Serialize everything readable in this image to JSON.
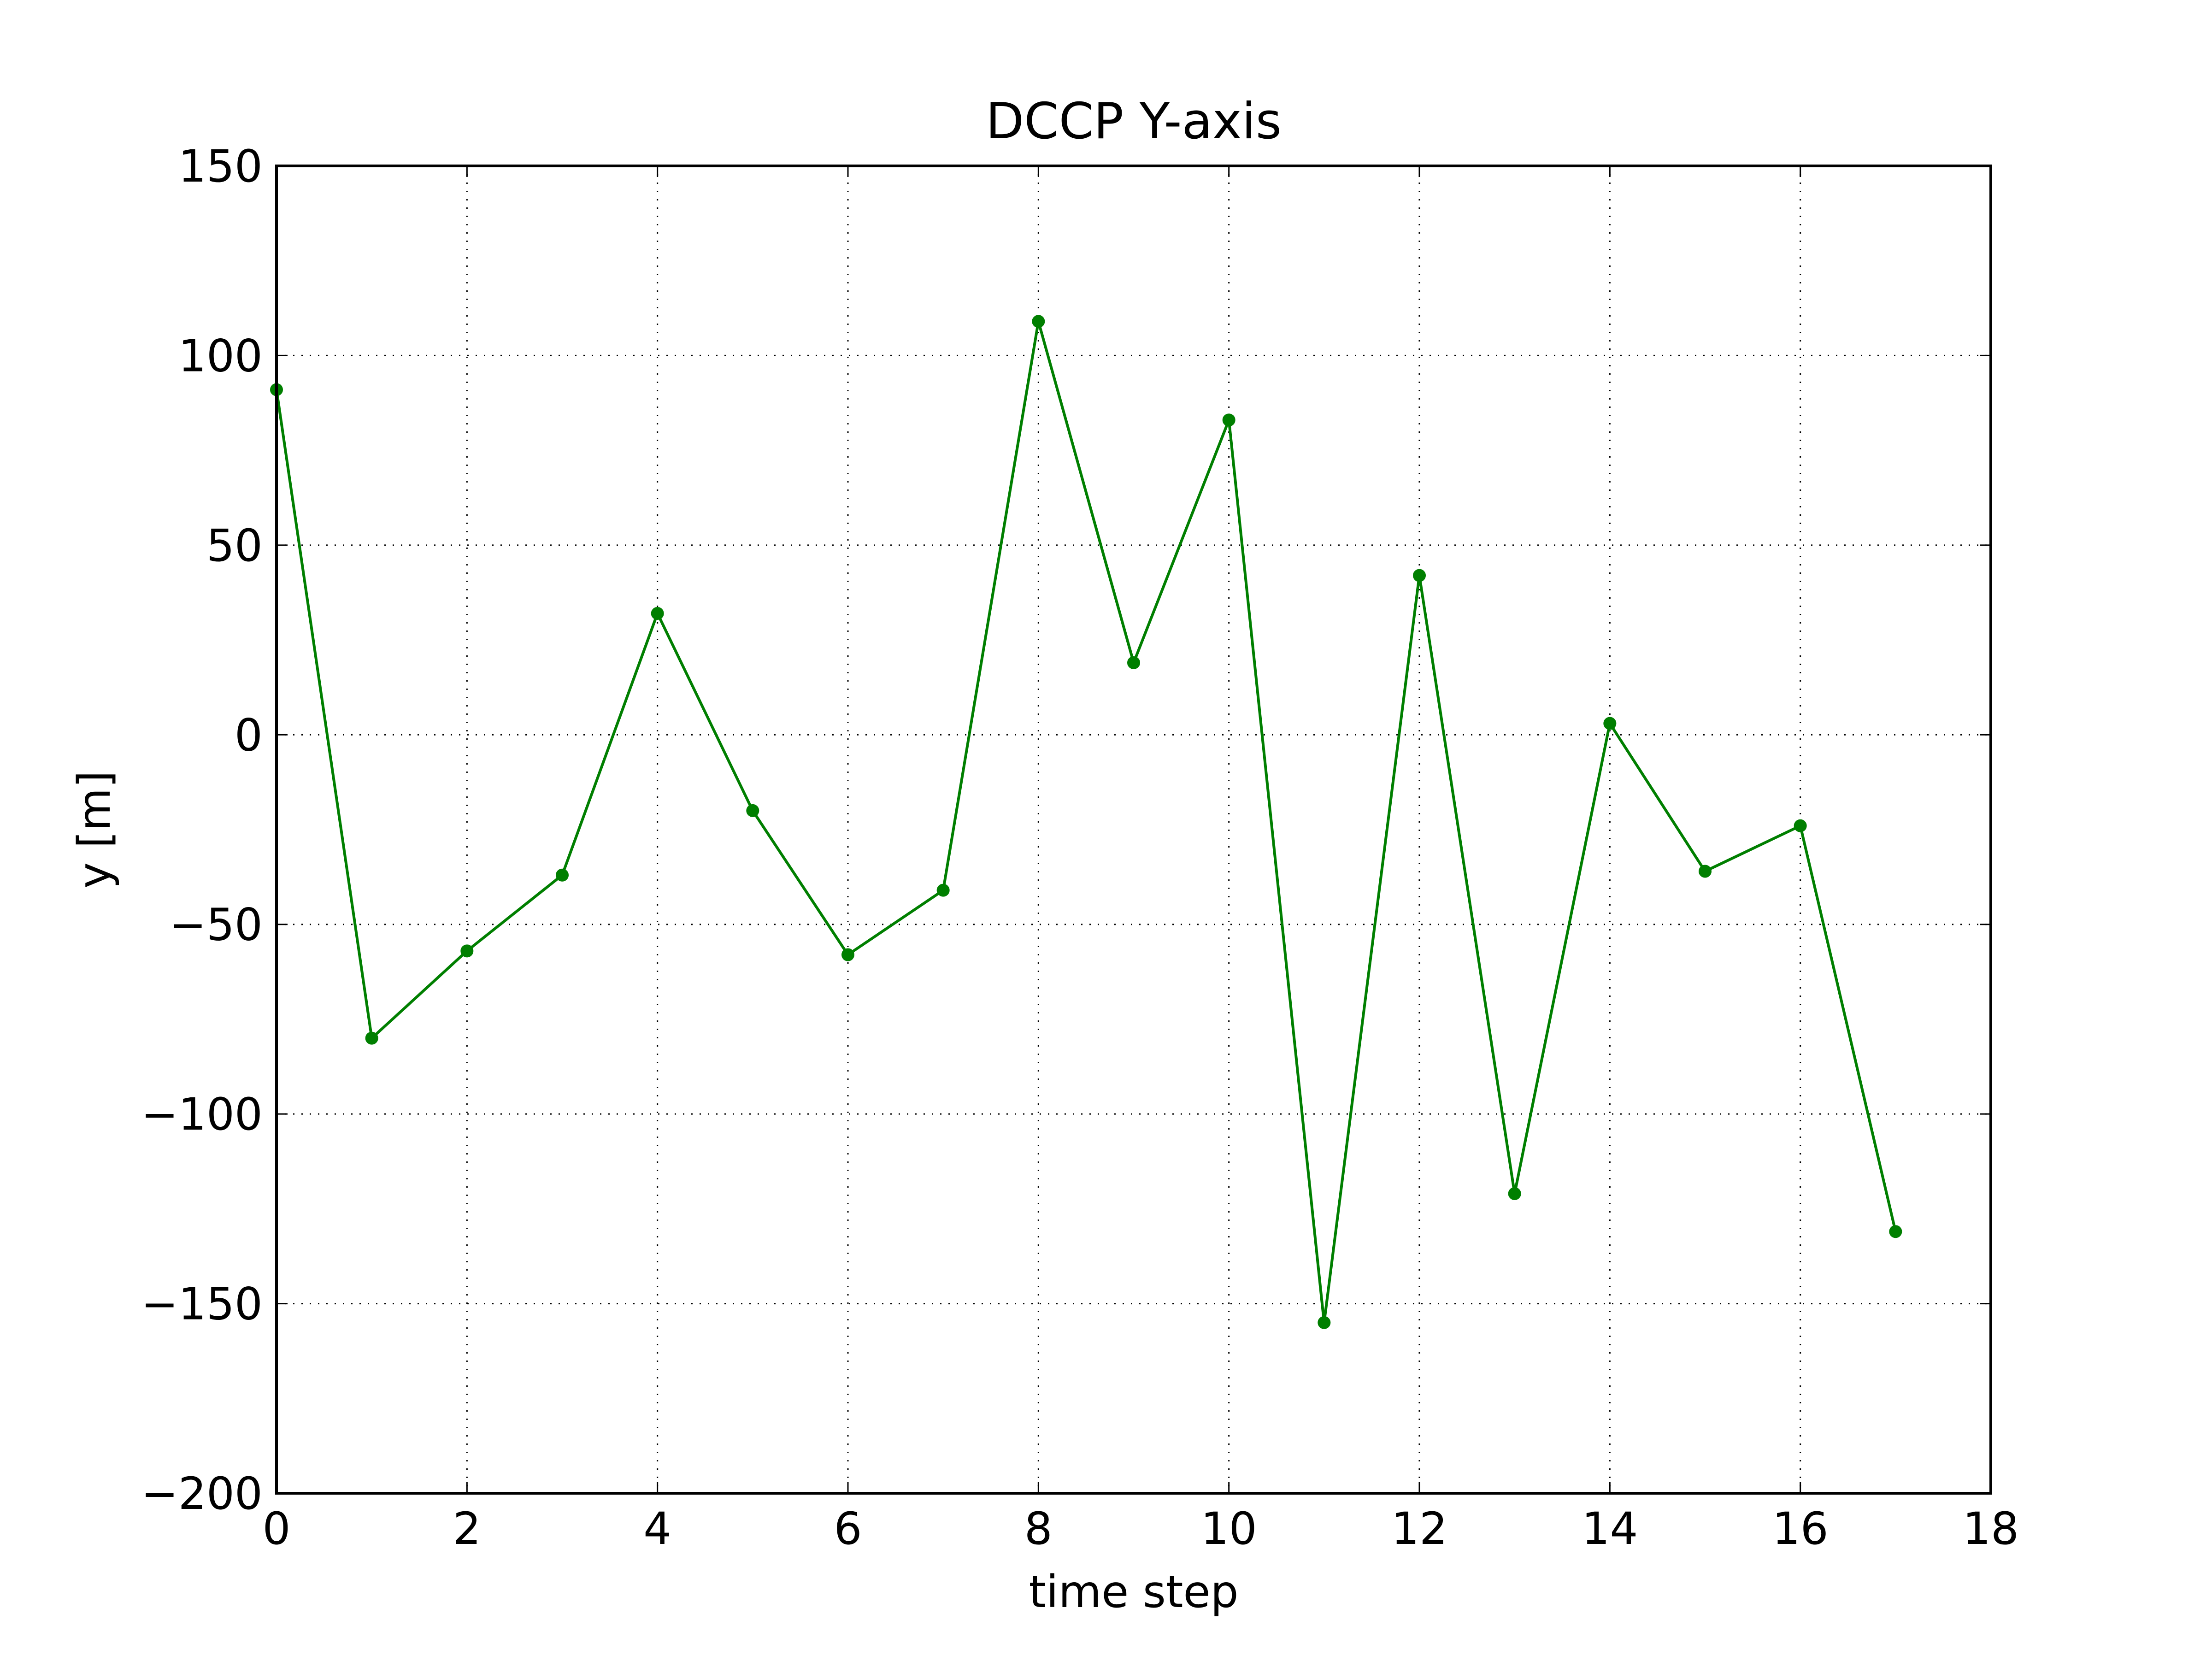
{
  "chart_data": {
    "type": "line",
    "title": "DCCP Y-axis",
    "xlabel": "time step",
    "ylabel": "y [m]",
    "xlim": [
      0,
      18
    ],
    "ylim": [
      -200,
      150
    ],
    "xticks": [
      0,
      2,
      4,
      6,
      8,
      10,
      12,
      14,
      16,
      18
    ],
    "yticks": [
      150,
      100,
      50,
      0,
      -50,
      -100,
      -150,
      -200
    ],
    "xtick_labels": [
      "0",
      "2",
      "4",
      "6",
      "8",
      "10",
      "12",
      "14",
      "16",
      "18"
    ],
    "ytick_labels": [
      "150",
      "100",
      "50",
      "0",
      "−50",
      "−100",
      "−150",
      "−200"
    ],
    "grid": true,
    "legend": "none",
    "colors": {
      "series": "#007f00",
      "grid": "#000000",
      "frame": "#000000"
    },
    "series": [
      {
        "x": [
          0,
          1,
          2,
          3,
          4,
          5,
          6,
          7,
          8,
          9,
          10,
          11,
          12,
          13,
          14,
          15,
          16,
          17
        ],
        "y": [
          91,
          -80,
          -57,
          -37,
          32,
          -20,
          -58,
          -41,
          109,
          19,
          83,
          -155,
          42,
          -121,
          3,
          -36,
          -24,
          -131
        ]
      }
    ]
  }
}
